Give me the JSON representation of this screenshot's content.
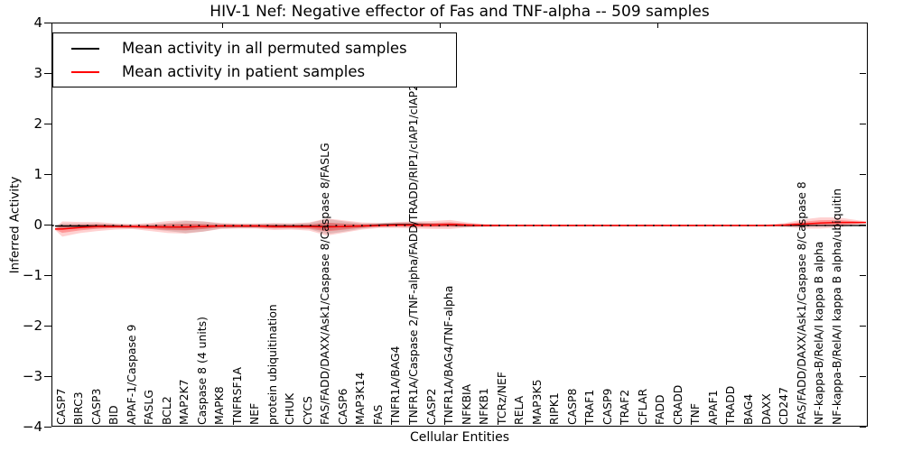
{
  "title": "HIV-1 Nef: Negative effector of Fas and TNF-alpha -- 509 samples",
  "axes": {
    "ylabel": "Inferred Activity",
    "xlabel": "Cellular Entities",
    "yticks": [
      "4",
      "3",
      "2",
      "1",
      "0",
      "−1",
      "−2",
      "−3",
      "−4"
    ],
    "ylim": [
      -4,
      4
    ]
  },
  "legend": {
    "items": [
      {
        "label": "Mean activity in all permuted samples",
        "color": "#000000"
      },
      {
        "label": "Mean activity in patient samples",
        "color": "#ff0000"
      }
    ]
  },
  "chart_data": {
    "type": "line",
    "title": "HIV-1 Nef: Negative effector of Fas and TNF-alpha -- 509 samples",
    "xlabel": "Cellular Entities",
    "ylabel": "Inferred Activity",
    "ylim": [
      -4,
      4
    ],
    "zero_line": "dotted",
    "legend_position": "upper left",
    "categories": [
      "CASP7",
      "BIRC3",
      "CASP3",
      "BID",
      "APAF-1/Caspase 9",
      "FASLG",
      "BCL2",
      "MAP2K7",
      "Caspase 8 (4 units)",
      "MAPK8",
      "TNFRSF1A",
      "NEF",
      "protein ubiquitination",
      "CHUK",
      "CYCS",
      "FAS/FADD/DAXX/Ask1/Caspase 8/Caspase 8/FASLG",
      "CASP6",
      "MAP3K14",
      "FAS",
      "TNFR1A/BAG4",
      "TNFR1A/Caspase 2/TNF-alpha/FADD/TRADD/RIP1/cIAP1/cIAP2/TRAF2",
      "CASP2",
      "TNFR1A/BAG4/TNF-alpha",
      "NFKBIA",
      "NFKB1",
      "TCRz/NEF",
      "RELA",
      "MAP3K5",
      "RIPK1",
      "CASP8",
      "TRAF1",
      "CASP9",
      "TRAF2",
      "CFLAR",
      "FADD",
      "CRADD",
      "TNF",
      "APAF1",
      "TRADD",
      "BAG4",
      "DAXX",
      "CD247",
      "FAS/FADD/DAXX/Ask1/Caspase 8/Caspase 8",
      "NF-kappa-B/RelA/I kappa B alpha",
      "NF-kappa-B/RelA/I kappa B alpha/ubiquitin"
    ],
    "series": [
      {
        "name": "Mean activity in all permuted samples",
        "color": "#000000",
        "band_color": "rgba(0,0,0,0.13)",
        "values": [
          -0.01,
          -0.01,
          -0.01,
          -0.01,
          -0.02,
          -0.02,
          -0.03,
          -0.03,
          -0.02,
          -0.01,
          -0.01,
          -0.01,
          -0.01,
          -0.01,
          -0.01,
          -0.02,
          -0.02,
          -0.01,
          0.01,
          0.02,
          0.02,
          0.01,
          0.01,
          0,
          0,
          0,
          0,
          0,
          0,
          0,
          0,
          0,
          0,
          0,
          0,
          0,
          0,
          0,
          0,
          0,
          0,
          0,
          0,
          0,
          0
        ],
        "band": [
          0.05,
          0.05,
          0.05,
          0.04,
          0.04,
          0.05,
          0.08,
          0.12,
          0.1,
          0.05,
          0.04,
          0.04,
          0.05,
          0.05,
          0.06,
          0.15,
          0.1,
          0.05,
          0.04,
          0.04,
          0.05,
          0.04,
          0.04,
          0.03,
          0.02,
          0.02,
          0.01,
          0.01,
          0.01,
          0.01,
          0.01,
          0.01,
          0.01,
          0.01,
          0.01,
          0.01,
          0.01,
          0.01,
          0.01,
          0.01,
          0.01,
          0.01,
          0.01,
          0.01,
          0.01
        ]
      },
      {
        "name": "Mean activity in patient samples",
        "color": "#ff0000",
        "band_color": "rgba(255,0,0,0.20)",
        "values": [
          -0.07,
          -0.04,
          -0.02,
          -0.02,
          -0.02,
          -0.03,
          -0.03,
          -0.03,
          -0.02,
          -0.01,
          -0.01,
          -0.01,
          -0.02,
          -0.02,
          -0.02,
          -0.03,
          -0.02,
          -0.01,
          0,
          0.01,
          0.01,
          0.01,
          0.02,
          0.01,
          0,
          0,
          0,
          0,
          0,
          0,
          0,
          0,
          0,
          0,
          0,
          0,
          0,
          0,
          0,
          0,
          0,
          0.01,
          0.03,
          0.05,
          0.06
        ],
        "band": [
          0.15,
          0.11,
          0.09,
          0.06,
          0.05,
          0.08,
          0.12,
          0.13,
          0.1,
          0.06,
          0.05,
          0.05,
          0.07,
          0.06,
          0.08,
          0.17,
          0.12,
          0.07,
          0.05,
          0.06,
          0.07,
          0.08,
          0.09,
          0.05,
          0.03,
          0.02,
          0.02,
          0.02,
          0.02,
          0.02,
          0.02,
          0.02,
          0.02,
          0.02,
          0.02,
          0.02,
          0.02,
          0.02,
          0.02,
          0.02,
          0.02,
          0.04,
          0.09,
          0.11,
          0.1
        ]
      }
    ]
  }
}
